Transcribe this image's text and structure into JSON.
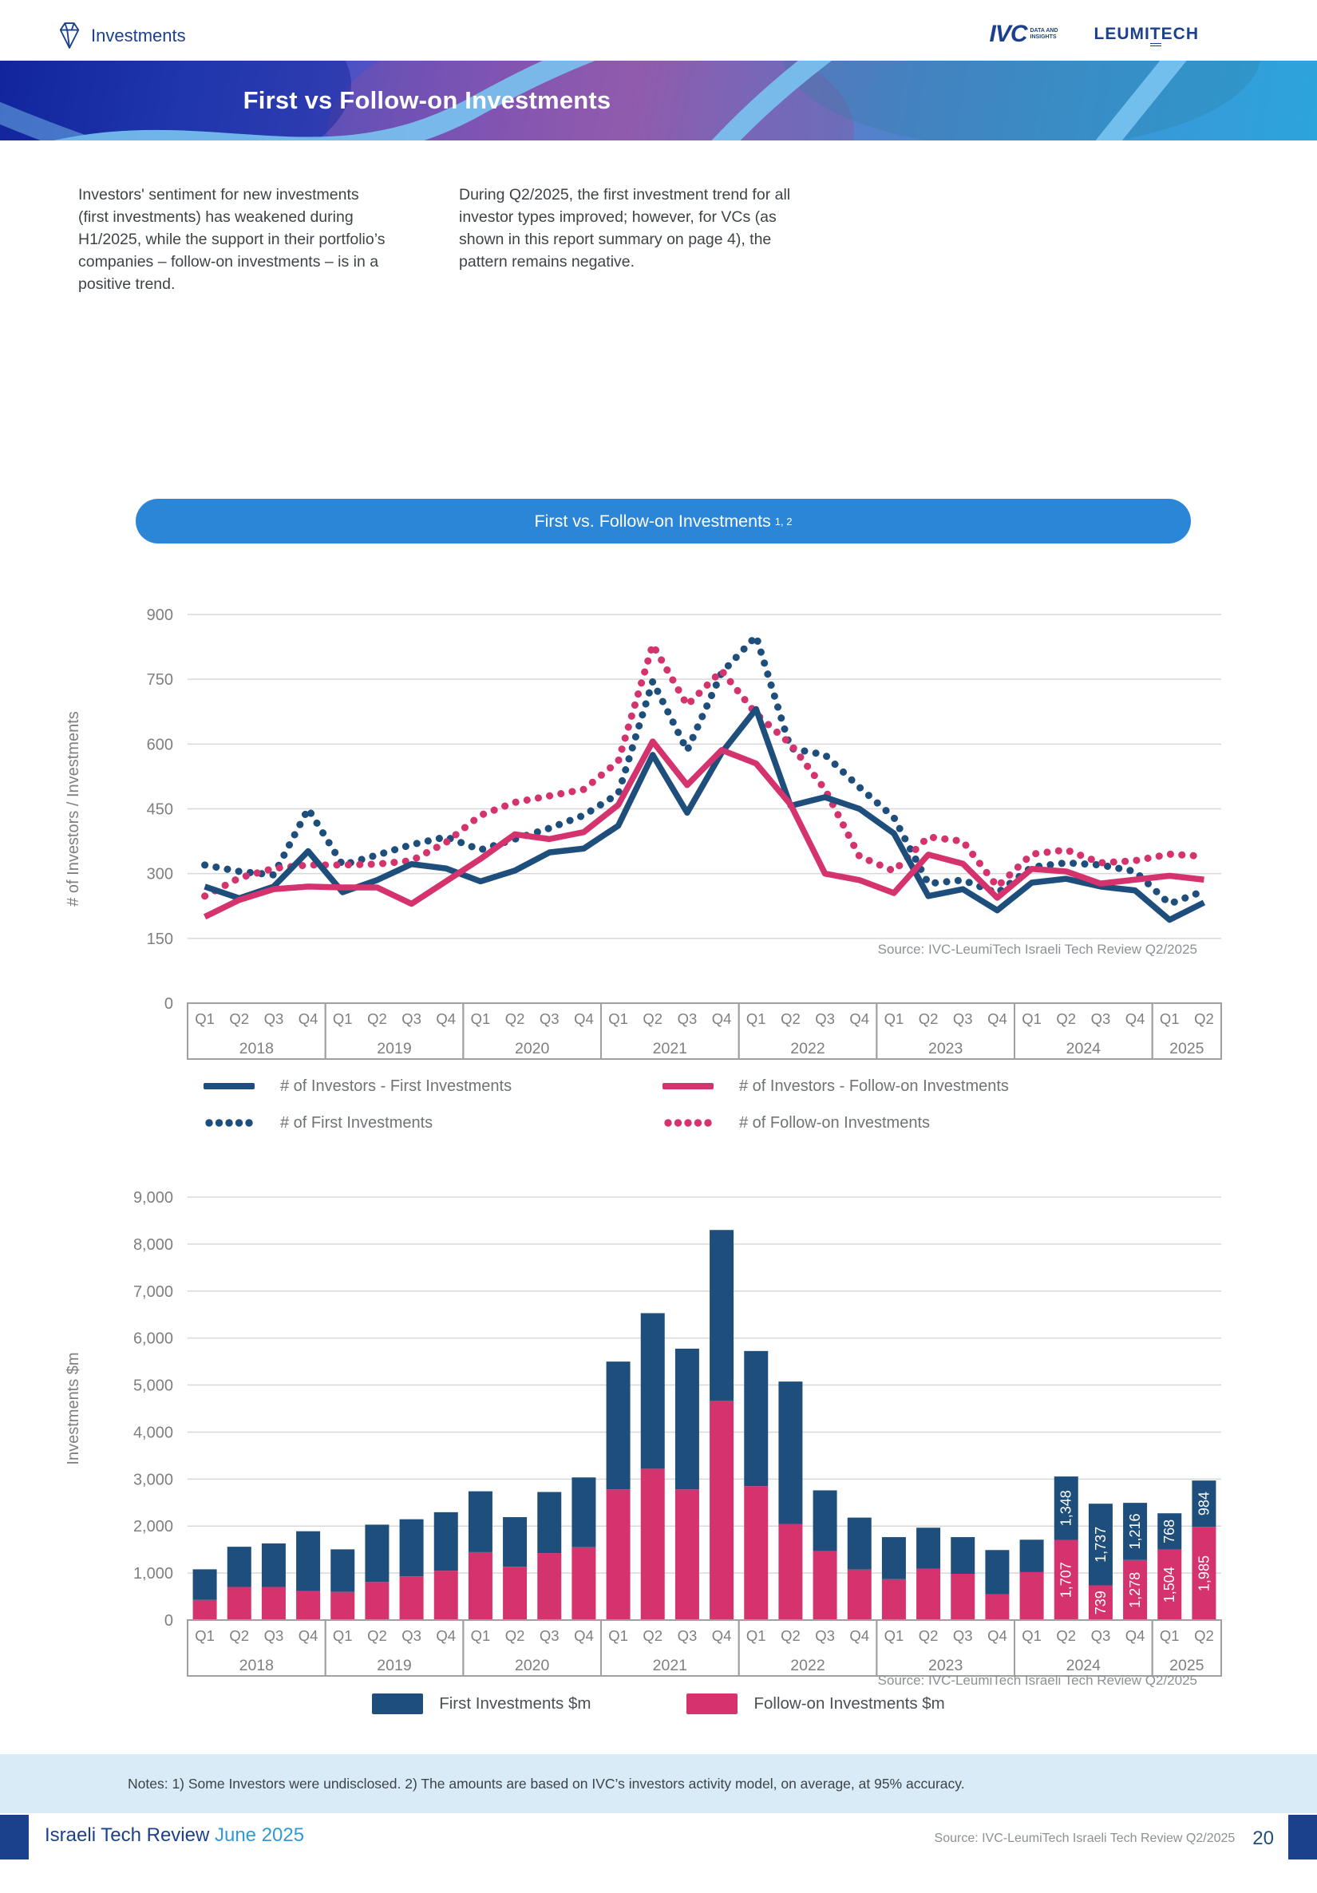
{
  "header": {
    "section_label": "Investments",
    "banner_title": "First vs Follow-on Investments",
    "logo_ivc": "IVC",
    "logo_ivc_sub": "DATA AND INSIGHTS",
    "logo_leumitech_a": "LEUMI",
    "logo_leumitech_t": "T",
    "logo_leumitech_b": "ECH"
  },
  "intro": {
    "left_paragraph": "Investors' sentiment for new investments (first investments) has weakened during H1/2025, while the support in their portfolio’s companies – follow-on investments – is in a positive trend.",
    "right_paragraph": "During Q2/2025, the first investment trend for all investor types improved; however, for VCs (as shown in this report summary on page 4), the pattern remains negative."
  },
  "pill": {
    "title": "First vs. Follow-on Investments",
    "superscript": "1, 2"
  },
  "colors": {
    "navy": "#1E4E7C",
    "pink": "#D5336E",
    "banner_blue": "#2C86D8",
    "grid": "#D8D8D8",
    "axis_text": "#7F7F7F",
    "box_border": "#A0A0A0",
    "source_text": "#8C9196"
  },
  "notes": "Notes: 1) Some Investors were undisclosed. 2) The amounts are based on IVC’s investors activity model, on average, at 95% accuracy.",
  "footer": {
    "left_title": "Israeli Tech Review",
    "left_date": " June 2025",
    "source": "Source: IVC-LeumiTech Israeli Tech Review Q2/2025",
    "page_number": "20"
  },
  "chart_data": [
    {
      "type": "line",
      "title": "First vs. Follow-on Investments",
      "ylabel": "# of Investors / Investments",
      "ylim": [
        0,
        900
      ],
      "yticks": [
        "0",
        "150",
        "300",
        "450",
        "600",
        "750",
        "900"
      ],
      "grid": true,
      "legend_position": "bottom",
      "source": "Source: IVC-LeumiTech Israeli Tech Review Q2/2025",
      "year_groups": [
        {
          "year": "2018",
          "quarters": [
            "Q1",
            "Q2",
            "Q3",
            "Q4"
          ]
        },
        {
          "year": "2019",
          "quarters": [
            "Q1",
            "Q2",
            "Q3",
            "Q4"
          ]
        },
        {
          "year": "2020",
          "quarters": [
            "Q1",
            "Q2",
            "Q3",
            "Q4"
          ]
        },
        {
          "year": "2021",
          "quarters": [
            "Q1",
            "Q2",
            "Q3",
            "Q4"
          ]
        },
        {
          "year": "2022",
          "quarters": [
            "Q1",
            "Q2",
            "Q3",
            "Q4"
          ]
        },
        {
          "year": "2023",
          "quarters": [
            "Q1",
            "Q2",
            "Q3",
            "Q4"
          ]
        },
        {
          "year": "2024",
          "quarters": [
            "Q1",
            "Q2",
            "Q3",
            "Q4"
          ]
        },
        {
          "year": "2025",
          "quarters": [
            "Q1",
            "Q2"
          ]
        }
      ],
      "series": [
        {
          "name": "# of First Investments",
          "style": "dotted",
          "color": "navy",
          "values": [
            320,
            305,
            297,
            450,
            320,
            343,
            367,
            385,
            355,
            380,
            405,
            435,
            485,
            745,
            585,
            765,
            850,
            590,
            575,
            500,
            430,
            277,
            285,
            255,
            315,
            325,
            320,
            305,
            230,
            260
          ]
        },
        {
          "name": "# of Follow-on Investments",
          "style": "dotted",
          "color": "pink",
          "values": [
            248,
            290,
            312,
            320,
            320,
            322,
            330,
            372,
            435,
            465,
            480,
            495,
            560,
            830,
            690,
            770,
            670,
            600,
            495,
            340,
            306,
            385,
            375,
            270,
            345,
            355,
            325,
            330,
            345,
            340
          ]
        },
        {
          "name": "# of Investors - First Investments",
          "style": "solid",
          "color": "navy",
          "values": [
            270,
            243,
            270,
            352,
            257,
            285,
            322,
            312,
            282,
            307,
            349,
            358,
            411,
            575,
            441,
            580,
            681,
            457,
            477,
            450,
            393,
            248,
            264,
            215,
            279,
            288,
            270,
            261,
            193,
            233
          ]
        },
        {
          "name": "# of Investors - Follow-on Investments",
          "style": "solid",
          "color": "pink",
          "values": [
            200,
            239,
            264,
            270,
            268,
            268,
            230,
            282,
            334,
            391,
            380,
            396,
            459,
            606,
            505,
            586,
            555,
            460,
            300,
            285,
            255,
            344,
            323,
            244,
            311,
            305,
            277,
            286,
            295,
            286
          ]
        }
      ],
      "legend_order": [
        2,
        3,
        0,
        1
      ]
    },
    {
      "type": "bar",
      "stacked": true,
      "ylabel": "Investments $m",
      "ylim": [
        0,
        9000
      ],
      "yticks": [
        "0",
        "1,000",
        "2,000",
        "3,000",
        "4,000",
        "5,000",
        "6,000",
        "7,000",
        "8,000",
        "9,000"
      ],
      "grid": true,
      "source": "Source: IVC-LeumiTech Israeli Tech Review Q2/2025",
      "year_groups": [
        {
          "year": "2018",
          "quarters": [
            "Q1",
            "Q2",
            "Q3",
            "Q4"
          ]
        },
        {
          "year": "2019",
          "quarters": [
            "Q1",
            "Q2",
            "Q3",
            "Q4"
          ]
        },
        {
          "year": "2020",
          "quarters": [
            "Q1",
            "Q2",
            "Q3",
            "Q4"
          ]
        },
        {
          "year": "2021",
          "quarters": [
            "Q1",
            "Q2",
            "Q3",
            "Q4"
          ]
        },
        {
          "year": "2022",
          "quarters": [
            "Q1",
            "Q2",
            "Q3",
            "Q4"
          ]
        },
        {
          "year": "2023",
          "quarters": [
            "Q1",
            "Q2",
            "Q3",
            "Q4"
          ]
        },
        {
          "year": "2024",
          "quarters": [
            "Q1",
            "Q2",
            "Q3",
            "Q4"
          ]
        },
        {
          "year": "2025",
          "quarters": [
            "Q1",
            "Q2"
          ]
        }
      ],
      "series": [
        {
          "name": "Follow-on Investments $m",
          "color": "pink",
          "values": [
            430,
            705,
            705,
            615,
            600,
            810,
            930,
            1050,
            1445,
            1135,
            1425,
            1550,
            2780,
            3220,
            2780,
            4670,
            2850,
            2040,
            1470,
            1075,
            870,
            1090,
            985,
            550,
            1020,
            1707,
            739,
            1278,
            1504,
            1985
          ],
          "value_labels": {
            "25": "1,707",
            "26": "739",
            "27": "1,278",
            "28": "1,504",
            "29": "1,985"
          }
        },
        {
          "name": "First Investments $m",
          "color": "navy",
          "values": [
            650,
            855,
            925,
            1275,
            905,
            1220,
            1215,
            1245,
            1295,
            1055,
            1300,
            1485,
            2720,
            3310,
            2995,
            3630,
            2875,
            3035,
            1290,
            1105,
            895,
            875,
            780,
            940,
            690,
            1348,
            1737,
            1216,
            768,
            984
          ],
          "value_labels": {
            "25": "1,348",
            "26": "1,737",
            "27": "1,216",
            "28": "768",
            "29": "984"
          }
        }
      ],
      "legend_order_display": [
        1,
        0
      ]
    }
  ]
}
